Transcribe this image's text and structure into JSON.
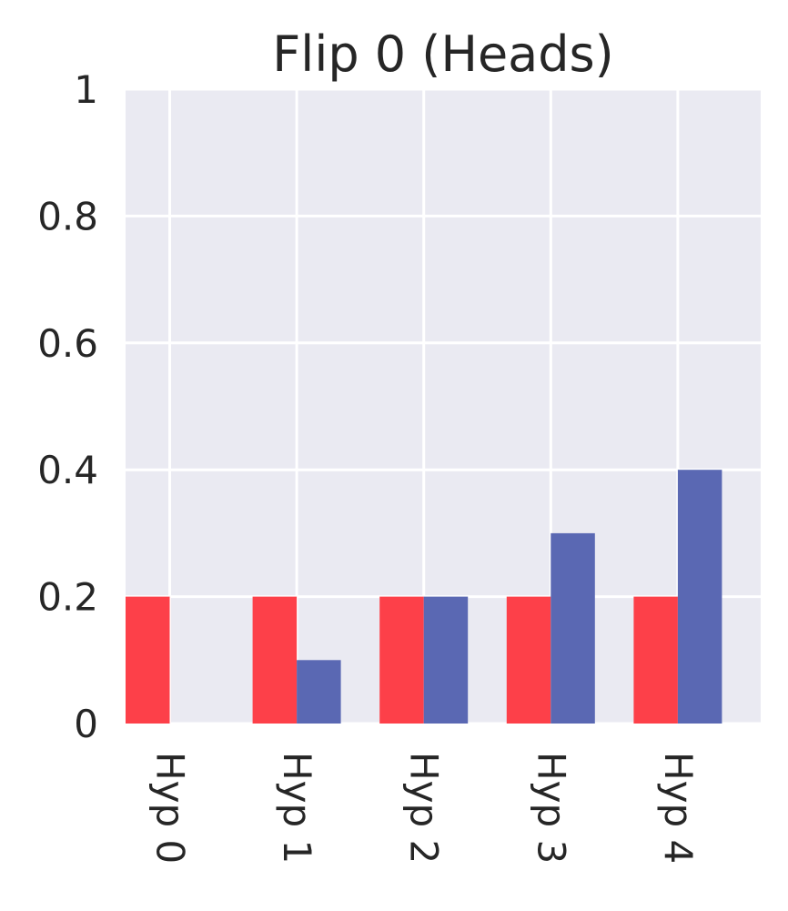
{
  "chart_data": {
    "type": "bar",
    "title": "Flip 0 (Heads)",
    "xlabel": "",
    "ylabel": "",
    "categories": [
      "Hyp 0",
      "Hyp 1",
      "Hyp 2",
      "Hyp 3",
      "Hyp 4"
    ],
    "series": [
      {
        "values": [
          0.2,
          0.2,
          0.2,
          0.2,
          0.2
        ],
        "color": "#fd4049"
      },
      {
        "values": [
          0.0,
          0.1,
          0.2,
          0.3,
          0.4
        ],
        "color": "#5a68b3"
      }
    ],
    "ylim": [
      0,
      1
    ],
    "yticks": [
      0,
      0.2,
      0.4,
      0.6,
      0.8,
      1
    ],
    "ytick_labels": [
      "0",
      "0.2",
      "0.4",
      "0.6",
      "0.8",
      "1"
    ],
    "grid": true,
    "background": "#eaeaf2",
    "grid_color": "#ffffff"
  }
}
